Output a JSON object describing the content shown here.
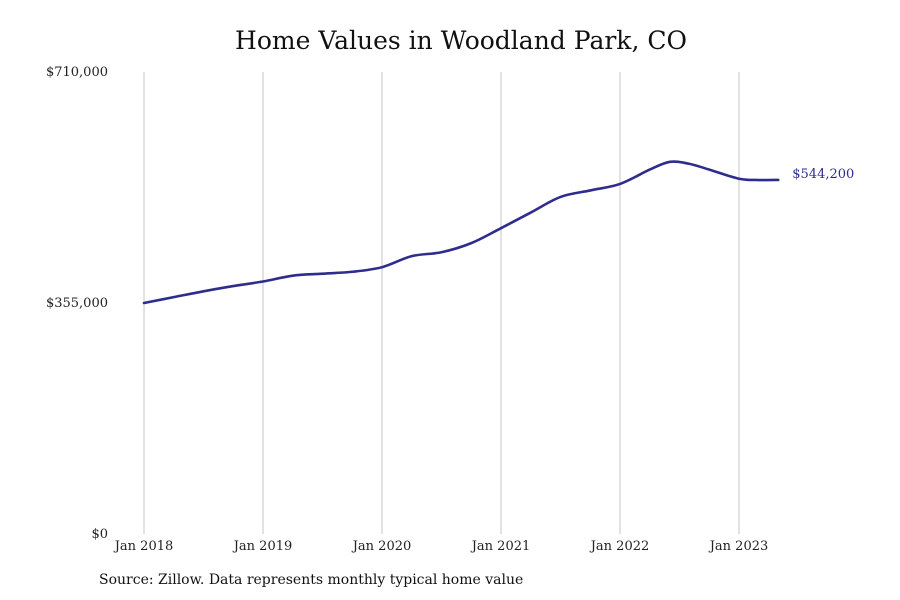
{
  "chart_data": {
    "type": "line",
    "title": "Home Values in Woodland Park, CO",
    "source_note": "Source: Zillow. Data represents monthly typical home value",
    "xlabel": "",
    "ylabel": "",
    "ylim": [
      0,
      710000
    ],
    "y_ticks": [
      {
        "value": 0,
        "label": "$0"
      },
      {
        "value": 355000,
        "label": "$355,000"
      },
      {
        "value": 710000,
        "label": "$710,000"
      }
    ],
    "x_ticks": [
      {
        "value": 2018.0,
        "label": "Jan 2018"
      },
      {
        "value": 2019.0,
        "label": "Jan 2019"
      },
      {
        "value": 2020.0,
        "label": "Jan 2020"
      },
      {
        "value": 2021.0,
        "label": "Jan 2021"
      },
      {
        "value": 2022.0,
        "label": "Jan 2022"
      },
      {
        "value": 2023.0,
        "label": "Jan 2023"
      }
    ],
    "grid": {
      "vertical": true,
      "horizontal": false
    },
    "end_label": "$544,200",
    "color": "#2e2d8c",
    "series": [
      {
        "points": [
          {
            "x": 2018.0,
            "y": 355000
          },
          {
            "x": 2018.25,
            "y": 364000
          },
          {
            "x": 2018.5,
            "y": 373000
          },
          {
            "x": 2018.75,
            "y": 381000
          },
          {
            "x": 2019.0,
            "y": 388000
          },
          {
            "x": 2019.25,
            "y": 397000
          },
          {
            "x": 2019.5,
            "y": 400000
          },
          {
            "x": 2019.75,
            "y": 403000
          },
          {
            "x": 2020.0,
            "y": 410000
          },
          {
            "x": 2020.25,
            "y": 427000
          },
          {
            "x": 2020.5,
            "y": 433000
          },
          {
            "x": 2020.75,
            "y": 447000
          },
          {
            "x": 2021.0,
            "y": 470000
          },
          {
            "x": 2021.25,
            "y": 494000
          },
          {
            "x": 2021.5,
            "y": 518000
          },
          {
            "x": 2021.75,
            "y": 528000
          },
          {
            "x": 2022.0,
            "y": 538000
          },
          {
            "x": 2022.25,
            "y": 560000
          },
          {
            "x": 2022.42,
            "y": 572000
          },
          {
            "x": 2022.58,
            "y": 569000
          },
          {
            "x": 2022.75,
            "y": 560000
          },
          {
            "x": 2023.0,
            "y": 546000
          },
          {
            "x": 2023.17,
            "y": 544000
          },
          {
            "x": 2023.33,
            "y": 544200
          }
        ]
      }
    ]
  }
}
